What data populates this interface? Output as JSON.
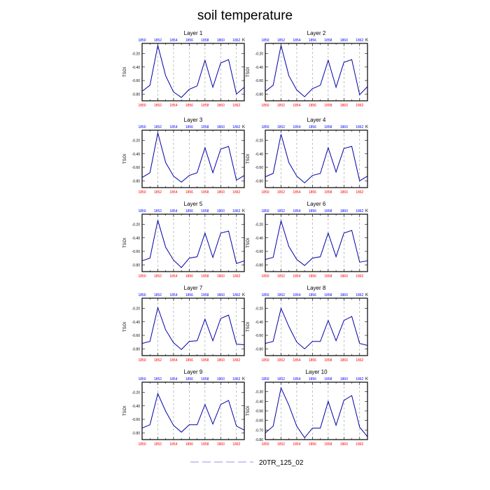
{
  "title": "soil temperature",
  "legend": {
    "label": "20TR_125_02",
    "color": "#aa88ee",
    "position": "bottom-center"
  },
  "colors": {
    "line": "#0000aa",
    "top_ticks": "#0000ff",
    "bottom_ticks": "#ff0000",
    "grid": "#999999"
  },
  "chart_data": [
    {
      "type": "line",
      "title": "Layer 1",
      "ylabel": "TSOI",
      "units": "K",
      "x": [
        1850,
        1851,
        1852,
        1853,
        1854,
        1855,
        1856,
        1857,
        1858,
        1859,
        1860,
        1861,
        1862,
        1863
      ],
      "xticks": [
        "1850",
        "1852",
        "1854",
        "1856",
        "1858",
        "1860",
        "1862"
      ],
      "yticks": [
        "-0.20",
        "-0.40",
        "-0.60",
        "-0.80"
      ],
      "ylim": [
        -0.9,
        -0.05
      ],
      "grid": "vertical-dashed",
      "series": [
        {
          "name": "20TR_125_02",
          "values": [
            -0.76,
            -0.67,
            -0.08,
            -0.53,
            -0.77,
            -0.85,
            -0.73,
            -0.68,
            -0.3,
            -0.7,
            -0.34,
            -0.29,
            -0.8,
            -0.7
          ]
        }
      ]
    },
    {
      "type": "line",
      "title": "Layer 2",
      "ylabel": "TSOI",
      "units": "K",
      "x": [
        1850,
        1851,
        1852,
        1853,
        1854,
        1855,
        1856,
        1857,
        1858,
        1859,
        1860,
        1861,
        1862,
        1863
      ],
      "xticks": [
        "1850",
        "1852",
        "1854",
        "1856",
        "1858",
        "1860",
        "1862"
      ],
      "yticks": [
        "-0.20",
        "-0.40",
        "-0.60",
        "-0.80"
      ],
      "ylim": [
        -0.9,
        -0.05
      ],
      "grid": "vertical-dashed",
      "series": [
        {
          "name": "20TR_125_02",
          "values": [
            -0.76,
            -0.67,
            -0.08,
            -0.53,
            -0.74,
            -0.84,
            -0.72,
            -0.67,
            -0.3,
            -0.7,
            -0.33,
            -0.29,
            -0.81,
            -0.69
          ]
        }
      ]
    },
    {
      "type": "line",
      "title": "Layer 3",
      "ylabel": "TSOI",
      "units": "K",
      "x": [
        1850,
        1851,
        1852,
        1853,
        1854,
        1855,
        1856,
        1857,
        1858,
        1859,
        1860,
        1861,
        1862,
        1863
      ],
      "xticks": [
        "1850",
        "1852",
        "1854",
        "1856",
        "1858",
        "1860",
        "1862"
      ],
      "yticks": [
        "-0.20",
        "-0.40",
        "-0.60",
        "-0.80"
      ],
      "ylim": [
        -0.9,
        -0.05
      ],
      "grid": "vertical-dashed",
      "series": [
        {
          "name": "20TR_125_02",
          "values": [
            -0.75,
            -0.68,
            -0.09,
            -0.53,
            -0.73,
            -0.82,
            -0.72,
            -0.68,
            -0.31,
            -0.68,
            -0.33,
            -0.29,
            -0.79,
            -0.72
          ]
        }
      ]
    },
    {
      "type": "line",
      "title": "Layer 4",
      "ylabel": "TSOI",
      "units": "K",
      "x": [
        1850,
        1851,
        1852,
        1853,
        1854,
        1855,
        1856,
        1857,
        1858,
        1859,
        1860,
        1861,
        1862,
        1863
      ],
      "xticks": [
        "1850",
        "1852",
        "1854",
        "1856",
        "1858",
        "1860",
        "1862"
      ],
      "yticks": [
        "-0.20",
        "-0.40",
        "-0.60",
        "-0.80"
      ],
      "ylim": [
        -0.9,
        -0.05
      ],
      "grid": "vertical-dashed",
      "series": [
        {
          "name": "20TR_125_02",
          "values": [
            -0.74,
            -0.69,
            -0.11,
            -0.53,
            -0.73,
            -0.83,
            -0.72,
            -0.69,
            -0.31,
            -0.67,
            -0.32,
            -0.29,
            -0.8,
            -0.73
          ]
        }
      ]
    },
    {
      "type": "line",
      "title": "Layer 5",
      "ylabel": "TSOI",
      "units": "K",
      "x": [
        1850,
        1851,
        1852,
        1853,
        1854,
        1855,
        1856,
        1857,
        1858,
        1859,
        1860,
        1861,
        1862,
        1863
      ],
      "xticks": [
        "1850",
        "1852",
        "1854",
        "1856",
        "1858",
        "1860",
        "1862"
      ],
      "yticks": [
        "-0.20",
        "-0.40",
        "-0.60",
        "-0.80"
      ],
      "ylim": [
        -0.9,
        -0.05
      ],
      "grid": "vertical-dashed",
      "series": [
        {
          "name": "20TR_125_02",
          "values": [
            -0.74,
            -0.7,
            -0.14,
            -0.54,
            -0.73,
            -0.84,
            -0.7,
            -0.68,
            -0.33,
            -0.69,
            -0.33,
            -0.3,
            -0.78,
            -0.74
          ]
        }
      ]
    },
    {
      "type": "line",
      "title": "Layer 6",
      "ylabel": "TSOI",
      "units": "K",
      "x": [
        1850,
        1851,
        1852,
        1853,
        1854,
        1855,
        1856,
        1857,
        1858,
        1859,
        1860,
        1861,
        1862,
        1863
      ],
      "xticks": [
        "1850",
        "1852",
        "1854",
        "1856",
        "1858",
        "1860",
        "1862"
      ],
      "yticks": [
        "-0.20",
        "-0.40",
        "-0.60",
        "-0.80"
      ],
      "ylim": [
        -0.9,
        -0.05
      ],
      "grid": "vertical-dashed",
      "series": [
        {
          "name": "20TR_125_02",
          "values": [
            -0.72,
            -0.69,
            -0.15,
            -0.53,
            -0.72,
            -0.81,
            -0.7,
            -0.68,
            -0.33,
            -0.68,
            -0.33,
            -0.29,
            -0.76,
            -0.74
          ]
        }
      ]
    },
    {
      "type": "line",
      "title": "Layer 7",
      "ylabel": "TSOI",
      "units": "K",
      "x": [
        1850,
        1851,
        1852,
        1853,
        1854,
        1855,
        1856,
        1857,
        1858,
        1859,
        1860,
        1861,
        1862,
        1863
      ],
      "xticks": [
        "1850",
        "1852",
        "1854",
        "1856",
        "1858",
        "1860",
        "1862"
      ],
      "yticks": [
        "-0.20",
        "-0.40",
        "-0.60",
        "-0.80"
      ],
      "ylim": [
        -0.9,
        -0.05
      ],
      "grid": "vertical-dashed",
      "series": [
        {
          "name": "20TR_125_02",
          "values": [
            -0.72,
            -0.69,
            -0.19,
            -0.52,
            -0.71,
            -0.81,
            -0.69,
            -0.68,
            -0.36,
            -0.68,
            -0.35,
            -0.3,
            -0.73,
            -0.74
          ]
        }
      ]
    },
    {
      "type": "line",
      "title": "Layer 8",
      "ylabel": "TSOI",
      "units": "K",
      "x": [
        1850,
        1851,
        1852,
        1853,
        1854,
        1855,
        1856,
        1857,
        1858,
        1859,
        1860,
        1861,
        1862,
        1863
      ],
      "xticks": [
        "1850",
        "1852",
        "1854",
        "1856",
        "1858",
        "1860",
        "1862"
      ],
      "yticks": [
        "-0.20",
        "-0.40",
        "-0.60",
        "-0.80"
      ],
      "ylim": [
        -0.9,
        -0.05
      ],
      "grid": "vertical-dashed",
      "series": [
        {
          "name": "20TR_125_02",
          "values": [
            -0.72,
            -0.69,
            -0.2,
            -0.47,
            -0.7,
            -0.8,
            -0.69,
            -0.69,
            -0.38,
            -0.68,
            -0.38,
            -0.32,
            -0.72,
            -0.75
          ]
        }
      ]
    },
    {
      "type": "line",
      "title": "Layer 9",
      "ylabel": "TSOI",
      "units": "K",
      "x": [
        1850,
        1851,
        1852,
        1853,
        1854,
        1855,
        1856,
        1857,
        1858,
        1859,
        1860,
        1861,
        1862,
        1863
      ],
      "xticks": [
        "1850",
        "1852",
        "1854",
        "1856",
        "1858",
        "1860",
        "1862"
      ],
      "yticks": [
        "-0.20",
        "-0.40",
        "-0.60",
        "-0.80"
      ],
      "ylim": [
        -0.9,
        -0.05
      ],
      "grid": "vertical-dashed",
      "series": [
        {
          "name": "20TR_125_02",
          "values": [
            -0.73,
            -0.68,
            -0.22,
            -0.48,
            -0.69,
            -0.79,
            -0.68,
            -0.68,
            -0.38,
            -0.67,
            -0.38,
            -0.32,
            -0.7,
            -0.76
          ]
        }
      ]
    },
    {
      "type": "line",
      "title": "Layer 10",
      "ylabel": "TSOI",
      "units": "K",
      "x": [
        1850,
        1851,
        1852,
        1853,
        1854,
        1855,
        1856,
        1857,
        1858,
        1859,
        1860,
        1861,
        1862,
        1863
      ],
      "xticks": [
        "1850",
        "1852",
        "1854",
        "1856",
        "1858",
        "1860",
        "1862"
      ],
      "yticks": [
        "-0.30",
        "-0.40",
        "-0.50",
        "-0.60",
        "-0.70",
        "-0.80"
      ],
      "ylim": [
        -0.8,
        -0.2
      ],
      "grid": "vertical-dashed",
      "series": [
        {
          "name": "20TR_125_02",
          "values": [
            -0.73,
            -0.66,
            -0.26,
            -0.44,
            -0.66,
            -0.78,
            -0.68,
            -0.68,
            -0.4,
            -0.65,
            -0.39,
            -0.34,
            -0.67,
            -0.77
          ]
        }
      ]
    }
  ]
}
